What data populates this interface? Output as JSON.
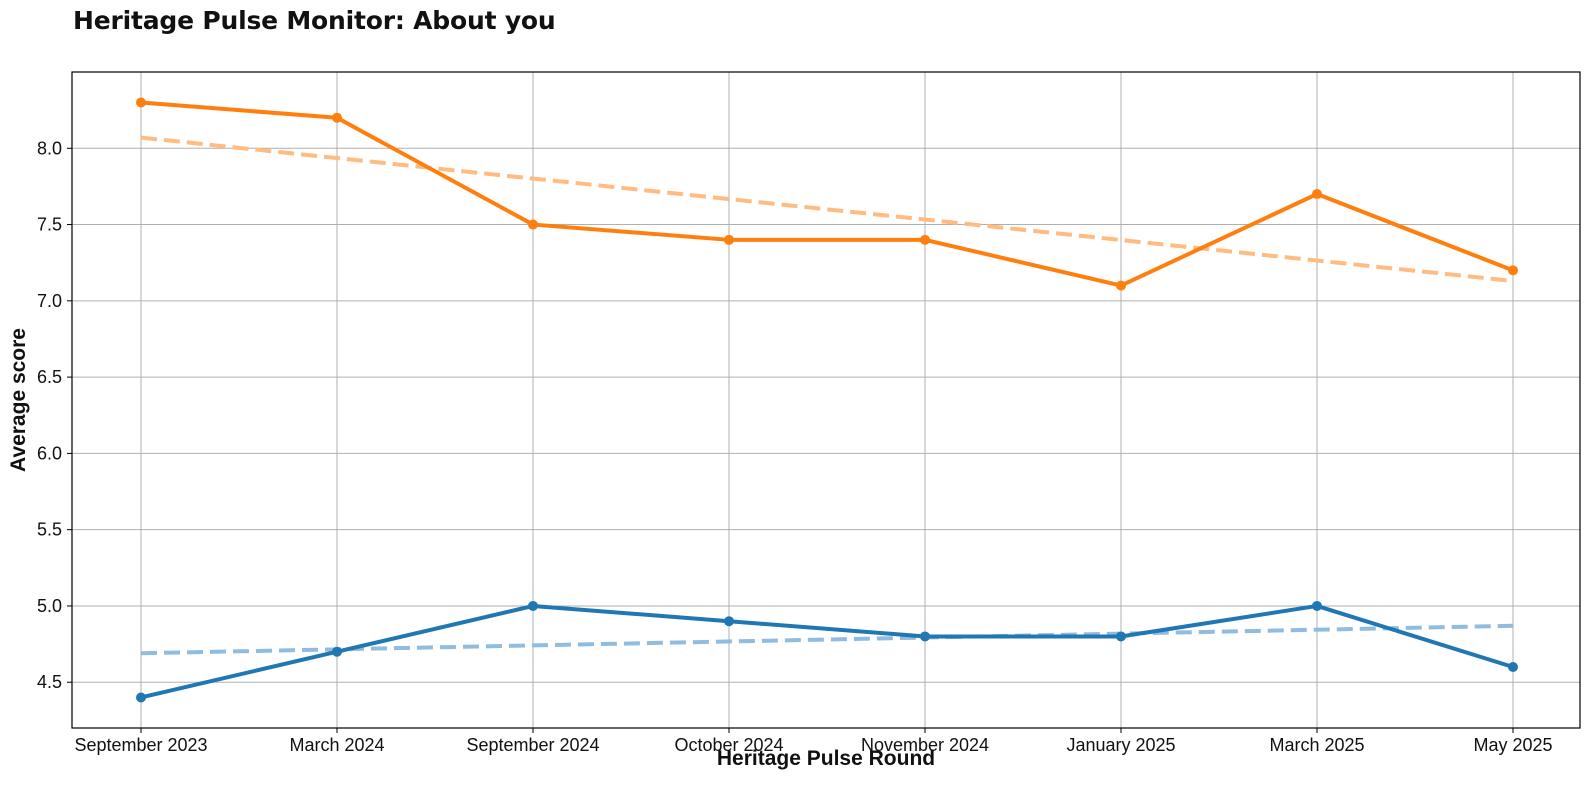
{
  "title": "Heritage Pulse Monitor: About you",
  "chart_data": {
    "type": "line",
    "title": "Heritage Pulse Monitor: About you",
    "xlabel": "Heritage Pulse Round",
    "ylabel": "Average score",
    "categories": [
      "September 2023",
      "March 2024",
      "September 2024",
      "October 2024",
      "November 2024",
      "January 2025",
      "March 2025",
      "May 2025"
    ],
    "ylim": [
      4.2,
      8.5
    ],
    "yticks": [
      "4.5",
      "5.0",
      "5.5",
      "6.0",
      "6.5",
      "7.0",
      "7.5",
      "8.0"
    ],
    "grid": true,
    "legend": "none",
    "series": [
      {
        "values": [
          8.3,
          8.2,
          7.5,
          7.4,
          7.4,
          7.1,
          7.7,
          7.2
        ],
        "color": "#ff7f0e"
      },
      {
        "values": [
          4.4,
          4.7,
          5.0,
          4.9,
          4.8,
          4.8,
          5.0,
          4.6
        ],
        "color": "#1f77b4"
      }
    ],
    "trendlines": [
      {
        "start": 8.07,
        "end": 7.13,
        "color": "#ffbb80",
        "style": "dashed"
      },
      {
        "start": 4.69,
        "end": 4.87,
        "color": "#8fbcdf",
        "style": "dashed"
      }
    ]
  }
}
